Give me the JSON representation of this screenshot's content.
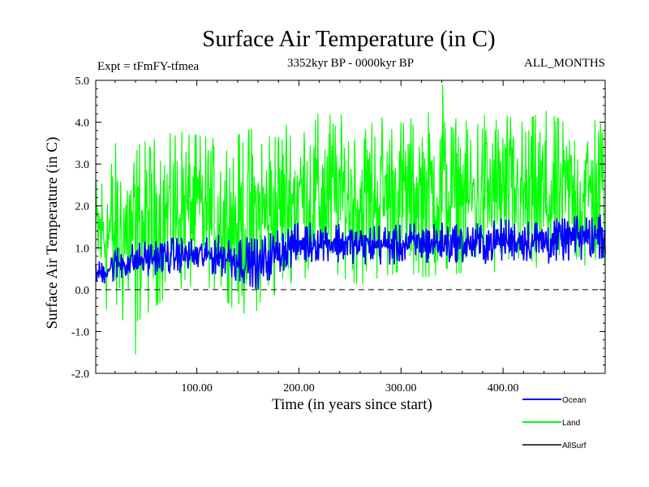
{
  "chart_data": {
    "type": "line",
    "title": "Surface Air Temperature (in C)",
    "subtitle_left": "Expt = tFmFY-tfmea",
    "subtitle_center": "3352kyr BP - 0000kyr BP",
    "subtitle_right": "ALL_MONTHS",
    "xlabel": "Time (in years since start)",
    "ylabel": "Surface Air Temperature (in C)",
    "xlim": [
      1,
      500
    ],
    "ylim": [
      -2.0,
      5.0
    ],
    "xticks": [
      100,
      200,
      300,
      400
    ],
    "xtick_labels": [
      "100.00",
      "200.00",
      "300.00",
      "400.00"
    ],
    "yticks": [
      -2,
      -1,
      0,
      1,
      2,
      3,
      4,
      5
    ],
    "ytick_labels": [
      "-2.0",
      "-1.0",
      "0.0",
      "1.0",
      "2.0",
      "3.0",
      "4.0",
      "5.0"
    ],
    "reference_line": {
      "y": 0.0,
      "style": "dashed"
    },
    "legend_position": "bottom-right",
    "series": [
      {
        "name": "Land",
        "color": "#00ff00",
        "trend_start": 2.1,
        "trend_end": 2.75,
        "anchor_years": [
          1,
          20,
          40,
          60,
          80,
          100,
          120,
          140,
          160,
          180,
          200,
          220,
          240,
          260,
          280,
          300,
          320,
          340,
          360,
          380,
          400,
          420,
          440,
          460,
          480,
          500
        ],
        "upper_envelope": [
          2.7,
          3.5,
          3.5,
          3.6,
          3.8,
          3.7,
          3.6,
          3.7,
          3.9,
          4.0,
          4.2,
          4.2,
          4.2,
          4.0,
          4.2,
          4.0,
          4.2,
          4.3,
          4.0,
          4.2,
          4.2,
          4.0,
          4.3,
          4.0,
          4.1,
          4.3
        ],
        "lower_envelope": [
          0.0,
          -0.9,
          -0.8,
          -0.4,
          0.0,
          0.1,
          0.0,
          -0.6,
          -0.5,
          -0.1,
          0.3,
          0.2,
          0.3,
          0.1,
          0.3,
          0.4,
          0.3,
          0.3,
          0.4,
          0.4,
          0.4,
          0.3,
          0.0,
          0.5,
          0.4,
          0.5
        ],
        "max_value": 4.9,
        "max_year": 341,
        "min_value": -1.55,
        "min_year": 40
      },
      {
        "name": "Ocean",
        "color": "#0000ff",
        "trend_start": 0.7,
        "trend_end": 1.15,
        "anchor_years": [
          1,
          20,
          40,
          60,
          80,
          100,
          120,
          140,
          160,
          180,
          200,
          220,
          240,
          260,
          280,
          300,
          320,
          340,
          360,
          380,
          400,
          420,
          440,
          460,
          480,
          500
        ],
        "upper_envelope": [
          0.6,
          1.0,
          1.1,
          1.2,
          1.25,
          1.2,
          1.3,
          1.3,
          1.2,
          1.45,
          1.6,
          1.6,
          1.6,
          1.5,
          1.55,
          1.55,
          1.6,
          1.6,
          1.55,
          1.6,
          1.7,
          1.65,
          1.7,
          1.7,
          1.8,
          1.8
        ],
        "lower_envelope": [
          0.1,
          0.2,
          0.3,
          0.35,
          0.4,
          0.4,
          0.35,
          0.2,
          0.0,
          0.4,
          0.6,
          0.7,
          0.65,
          0.6,
          0.6,
          0.6,
          0.6,
          0.65,
          0.65,
          0.6,
          0.7,
          0.7,
          0.6,
          0.7,
          0.7,
          0.75
        ],
        "max_value": 1.8,
        "max_year": 495,
        "min_value": 0.0,
        "min_year": 160
      },
      {
        "name": "AllSurf",
        "color": "#000000"
      }
    ]
  }
}
